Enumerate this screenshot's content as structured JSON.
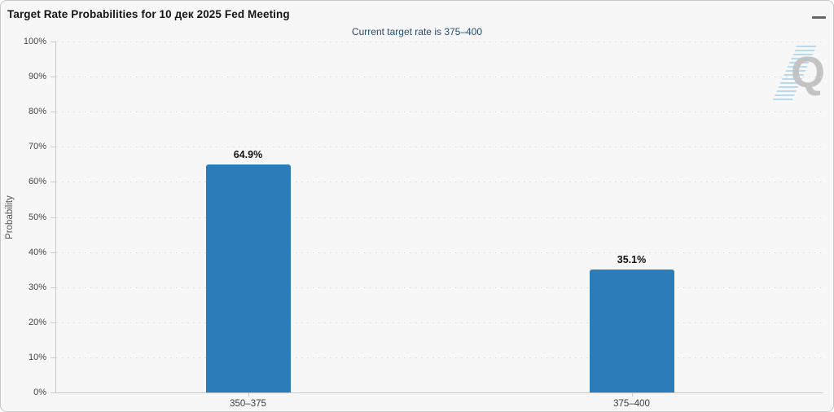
{
  "header": {
    "title": "Target Rate Probabilities for 10 дек 2025 Fed Meeting",
    "menu_icon": "hamburger-icon"
  },
  "subtitle": "Current target rate is 375–400",
  "watermark_letter": "Q",
  "chart_data": {
    "type": "bar",
    "title": "Target Rate Probabilities for 10 дек 2025 Fed Meeting",
    "subtitle": "Current target rate is 375–400",
    "categories": [
      "350–375",
      "375–400"
    ],
    "values": [
      64.9,
      35.1
    ],
    "data_labels": [
      "64.9%",
      "35.1%"
    ],
    "xlabel": "",
    "ylabel": "Probability",
    "ylim": [
      0,
      100
    ],
    "ytick_step": 10,
    "ytick_suffix": "%",
    "grid": "dotted-horizontal",
    "legend": "none",
    "bar_color": "#2b7cb9",
    "subtitle_color": "#274b6d"
  }
}
